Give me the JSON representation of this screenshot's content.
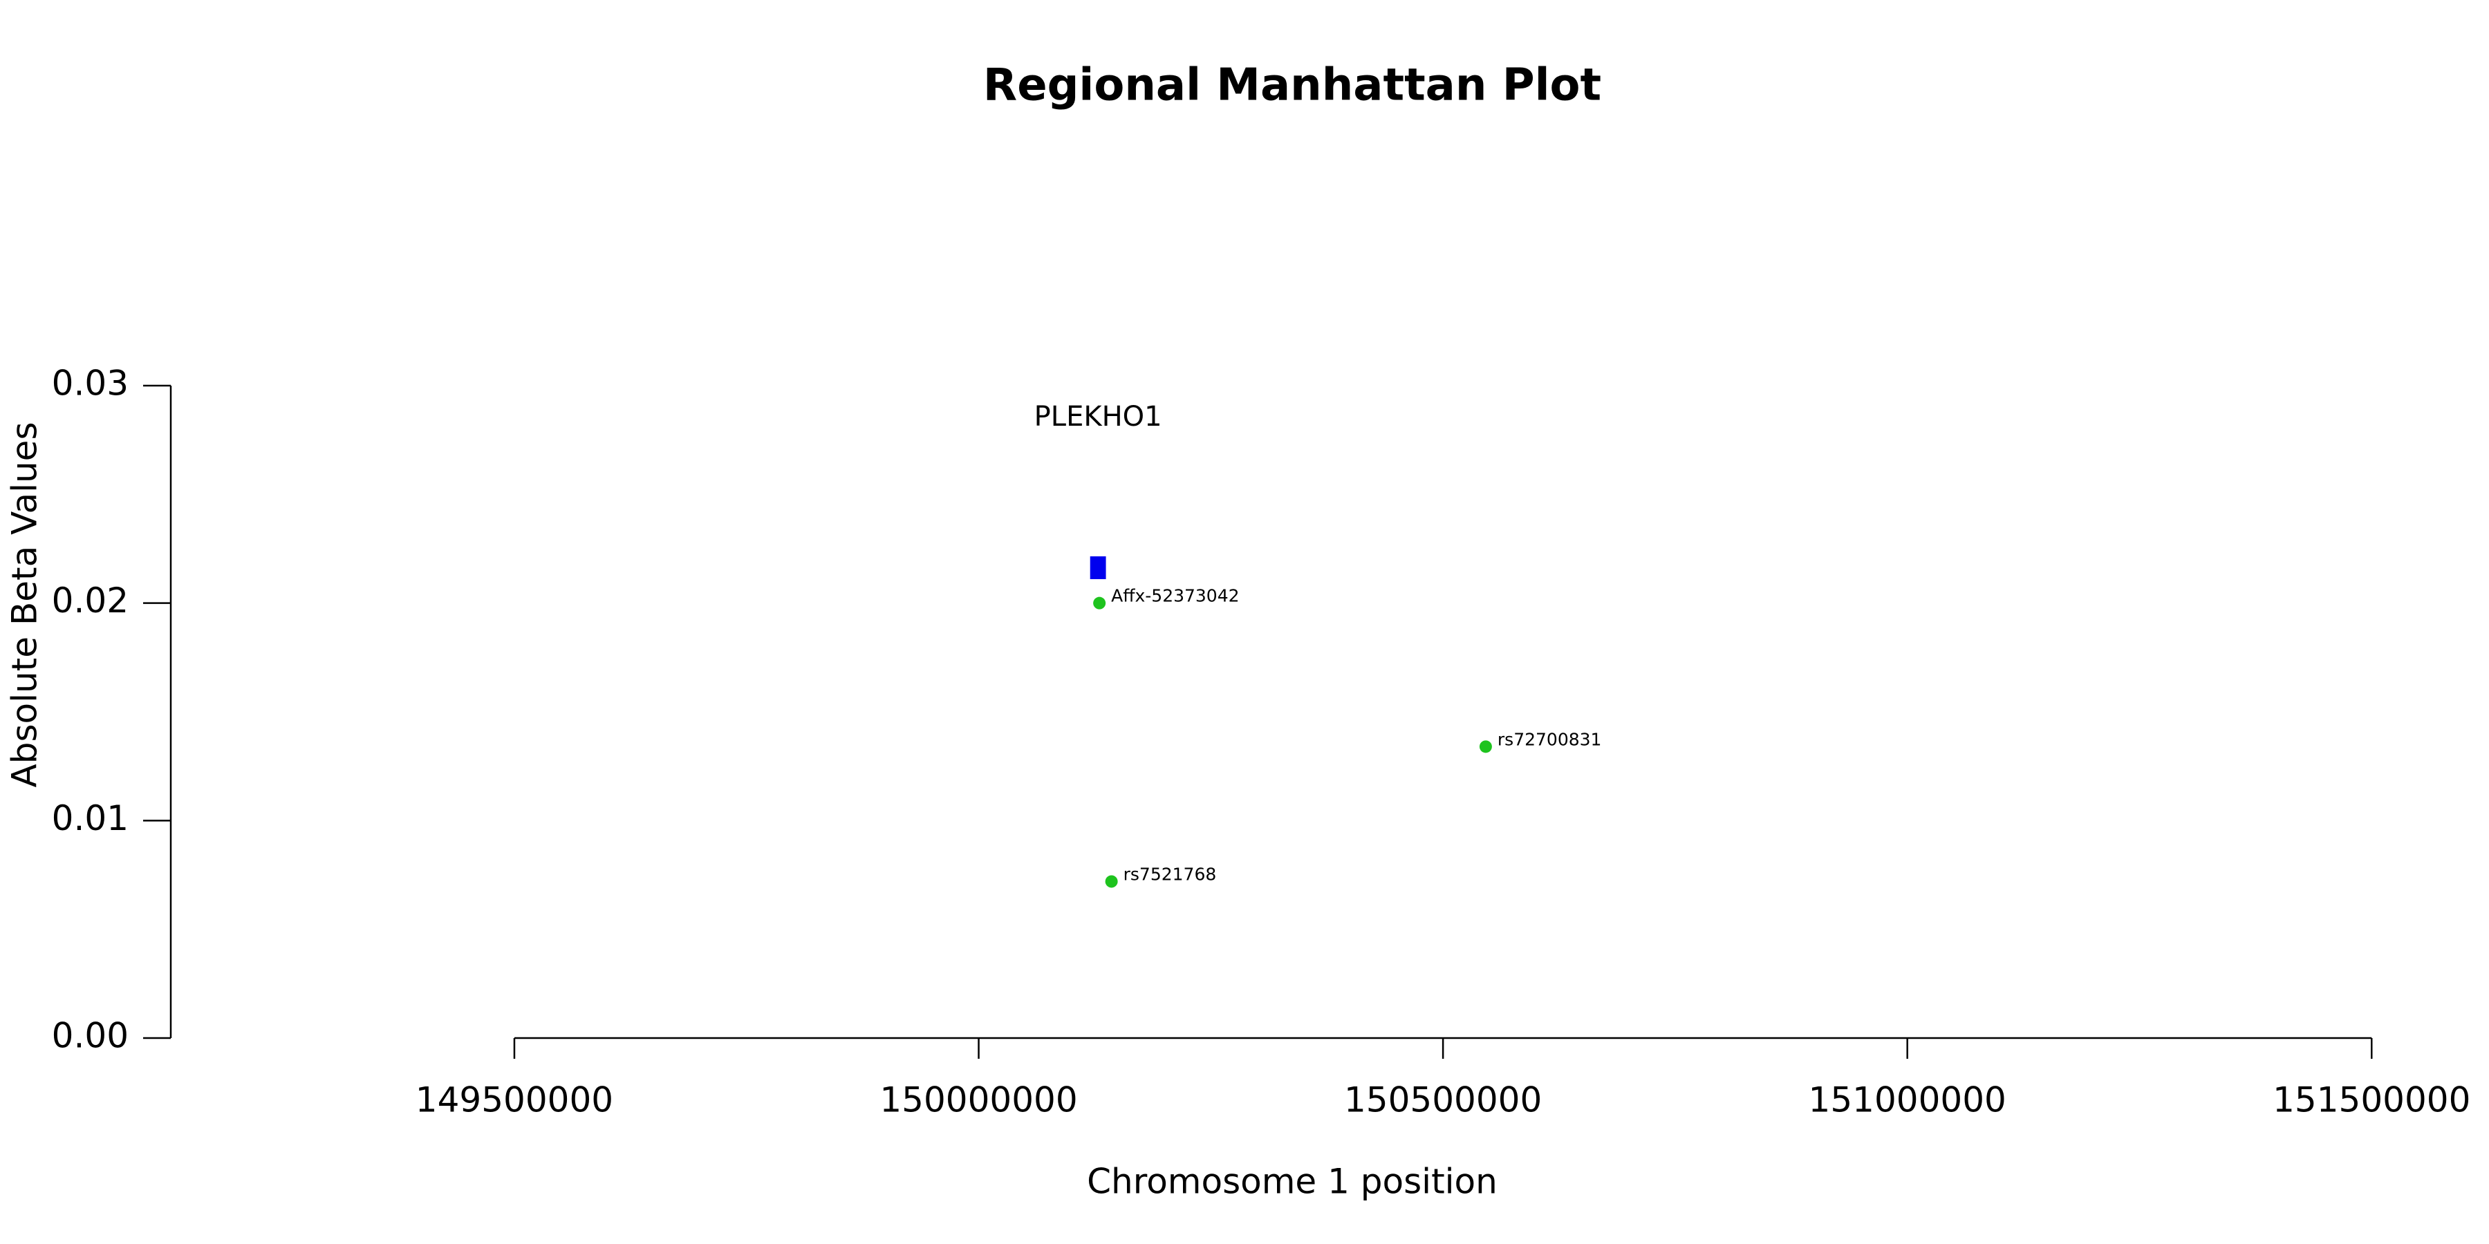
{
  "chart_data": {
    "type": "scatter",
    "title": "Regional Manhattan Plot",
    "x_label": "Chromosome 1 position",
    "y_label": "Absolute Beta Values",
    "series": [
      {
        "color": "#1ec31e",
        "x": [
          150130000,
          150546000,
          150143000
        ],
        "values": [
          0.02,
          0.0134,
          0.0072
        ],
        "point_labels": [
          "Affx-52373042",
          "rs72700831",
          "rs7521768"
        ]
      }
    ],
    "genes": [
      {
        "name": "PLEKHO1",
        "start": 150120000,
        "end": 150137000,
        "color": "#0000ee"
      }
    ],
    "xlim": [
      149130000,
      151575000
    ],
    "ylim": [
      0,
      0.03
    ],
    "xticks": [
      149500000,
      150000000,
      150500000,
      151000000,
      151500000
    ],
    "yticks": [
      {
        "value": 0,
        "label": "0.00"
      },
      0.01,
      0.02,
      0.03
    ]
  }
}
